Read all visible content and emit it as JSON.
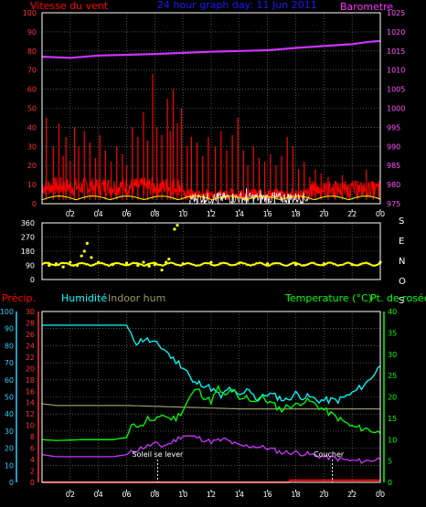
{
  "colors": {
    "background": "#000000",
    "frame": "#ffffff",
    "grid": "#808080",
    "wind_speed": "#ff0000",
    "wind_title": "#ff0000",
    "header_title": "#1a1aff",
    "barometer": "#cc33ff",
    "barometer_title": "#ff33ff",
    "gust": "#ffffff",
    "avg_wind": "#ffff00",
    "wind_dir": "#ffff00",
    "precip": "#ff0000",
    "humidity": "#00ffff",
    "indoor_hum": "#999966",
    "temperature": "#00ff00",
    "dewpoint": "#cc33ff",
    "label_cyan": "#33ccff"
  },
  "header": {
    "title": "24 hour graph day: 11 Jun 2011",
    "wind_label": "Vitesse du vent",
    "baro_label": "Barometre"
  },
  "compass": [
    "S",
    "E",
    "N",
    "O",
    "S"
  ],
  "legend2": {
    "precip": "Précip.",
    "humidity": "Humidité",
    "indoor": "Indoor hum",
    "temp": "Temperature (°C)",
    "dew": "Pt. de rosée"
  },
  "annotations": {
    "sunrise": "Soleil se lever",
    "sunset": "Coucher"
  },
  "chart_data": [
    {
      "type": "bar",
      "name": "wind",
      "x_ticks": [
        "02",
        "04",
        "06",
        "08",
        "10",
        "12",
        "14",
        "16",
        "18",
        "20",
        "22",
        "00"
      ],
      "ylim": [
        0,
        100
      ],
      "y_ticks": [
        0,
        10,
        20,
        30,
        40,
        50,
        60,
        70,
        80,
        90,
        100
      ],
      "y2lim": [
        975,
        1025
      ],
      "y2_ticks": [
        975,
        980,
        985,
        990,
        995,
        1000,
        1005,
        1010,
        1015,
        1020,
        1025
      ],
      "wind_peaks": [
        [
          0.3,
          45
        ],
        [
          0.8,
          30
        ],
        [
          1.2,
          42
        ],
        [
          1.5,
          25
        ],
        [
          1.7,
          35
        ],
        [
          2.0,
          22
        ],
        [
          2.3,
          40
        ],
        [
          2.6,
          30
        ],
        [
          3.0,
          38
        ],
        [
          3.4,
          32
        ],
        [
          3.8,
          24
        ],
        [
          4.1,
          36
        ],
        [
          4.5,
          28
        ],
        [
          4.9,
          22
        ],
        [
          5.3,
          30
        ],
        [
          5.7,
          26
        ],
        [
          6.0,
          20
        ],
        [
          6.4,
          40
        ],
        [
          6.8,
          35
        ],
        [
          7.2,
          48
        ],
        [
          7.5,
          33
        ],
        [
          7.85,
          68
        ],
        [
          8.15,
          40
        ],
        [
          8.5,
          36
        ],
        [
          8.9,
          55
        ],
        [
          9.1,
          38
        ],
        [
          9.3,
          60
        ],
        [
          9.6,
          42
        ],
        [
          9.9,
          50
        ],
        [
          10.3,
          30
        ],
        [
          10.6,
          35
        ],
        [
          11.0,
          32
        ],
        [
          11.4,
          25
        ],
        [
          11.8,
          35
        ],
        [
          12.3,
          30
        ],
        [
          12.7,
          38
        ],
        [
          13.1,
          28
        ],
        [
          13.5,
          36
        ],
        [
          13.9,
          45
        ],
        [
          14.3,
          28
        ],
        [
          14.6,
          20
        ],
        [
          15.0,
          30
        ],
        [
          15.4,
          24
        ],
        [
          15.8,
          22
        ],
        [
          16.2,
          26
        ],
        [
          16.6,
          20
        ],
        [
          17.0,
          25
        ],
        [
          17.4,
          35
        ],
        [
          17.8,
          30
        ],
        [
          18.2,
          18
        ],
        [
          18.6,
          22
        ],
        [
          19.0,
          14
        ],
        [
          19.4,
          18
        ],
        [
          19.8,
          16
        ],
        [
          20.3,
          14
        ],
        [
          20.8,
          12
        ],
        [
          21.3,
          15
        ],
        [
          21.8,
          10
        ],
        [
          22.4,
          12
        ],
        [
          23.0,
          18
        ],
        [
          23.5,
          10
        ],
        [
          23.9,
          12
        ]
      ],
      "barometer": [
        [
          0,
          1013.5
        ],
        [
          2,
          1013.2
        ],
        [
          4,
          1013.8
        ],
        [
          6,
          1014.0
        ],
        [
          8,
          1014.2
        ],
        [
          10,
          1014.5
        ],
        [
          12,
          1014.8
        ],
        [
          14,
          1015.0
        ],
        [
          16,
          1015.2
        ],
        [
          18,
          1015.8
        ],
        [
          20,
          1016.3
        ],
        [
          22,
          1016.8
        ],
        [
          23.2,
          1017.4
        ],
        [
          24,
          1017.6
        ]
      ],
      "gust": [
        [
          10.5,
          2
        ],
        [
          11.5,
          4
        ],
        [
          12.5,
          6
        ],
        [
          13.5,
          5
        ],
        [
          14.5,
          8
        ],
        [
          15.5,
          7
        ],
        [
          16.5,
          6
        ],
        [
          17.5,
          5
        ],
        [
          18.5,
          4
        ]
      ]
    },
    {
      "type": "scatter",
      "name": "wind_direction",
      "ylim": [
        0,
        360
      ],
      "y_ticks": [
        0,
        90,
        180,
        270,
        360
      ],
      "points": [
        [
          0.5,
          90
        ],
        [
          1.0,
          100
        ],
        [
          1.5,
          80
        ],
        [
          2.0,
          110
        ],
        [
          2.5,
          90
        ],
        [
          2.8,
          150
        ],
        [
          3.0,
          180
        ],
        [
          3.2,
          230
        ],
        [
          3.5,
          140
        ],
        [
          4.0,
          110
        ],
        [
          5.0,
          95
        ],
        [
          6.0,
          105
        ],
        [
          6.8,
          90
        ],
        [
          7.2,
          110
        ],
        [
          7.6,
          85
        ],
        [
          8.0,
          95
        ],
        [
          8.5,
          60
        ],
        [
          8.8,
          110
        ],
        [
          9.0,
          130
        ],
        [
          9.4,
          320
        ],
        [
          9.6,
          345
        ],
        [
          10.0,
          100
        ],
        [
          12.0,
          110
        ],
        [
          14.0,
          105
        ],
        [
          16.0,
          100
        ],
        [
          18.0,
          95
        ],
        [
          20.0,
          100
        ],
        [
          22.0,
          95
        ],
        [
          24.0,
          110
        ]
      ]
    },
    {
      "type": "line",
      "name": "temperature_humidity",
      "x_ticks": [
        "02",
        "04",
        "06",
        "08",
        "10",
        "12",
        "14",
        "16",
        "18",
        "20",
        "22",
        "00"
      ],
      "ylim": [
        0,
        100
      ],
      "y_ticks": [
        0,
        10,
        20,
        30,
        40,
        50,
        60,
        70,
        80,
        90,
        100
      ],
      "y_ticks_secondary": [
        0,
        2,
        4,
        6,
        8,
        10,
        12,
        14,
        16,
        18,
        20,
        22,
        24,
        26,
        28,
        30
      ],
      "y2lim": [
        0,
        40
      ],
      "y2_ticks": [
        0,
        5,
        10,
        15,
        20,
        25,
        30,
        35,
        40
      ],
      "humidity": [
        [
          0,
          92
        ],
        [
          1,
          92
        ],
        [
          3,
          92
        ],
        [
          5,
          92
        ],
        [
          6,
          92
        ],
        [
          6.3,
          86
        ],
        [
          6.7,
          82
        ],
        [
          7.3,
          84
        ],
        [
          7.8,
          82
        ],
        [
          8.3,
          80
        ],
        [
          8.8,
          77
        ],
        [
          9.3,
          72
        ],
        [
          9.7,
          70
        ],
        [
          10.3,
          65
        ],
        [
          10.7,
          58
        ],
        [
          11.3,
          58
        ],
        [
          12.0,
          55
        ],
        [
          12.7,
          50
        ],
        [
          13.3,
          55
        ],
        [
          14.0,
          50
        ],
        [
          14.7,
          55
        ],
        [
          15.3,
          48
        ],
        [
          16.0,
          52
        ],
        [
          16.7,
          50
        ],
        [
          17.3,
          48
        ],
        [
          18.0,
          52
        ],
        [
          18.5,
          50
        ],
        [
          19.0,
          50
        ],
        [
          19.5,
          48
        ],
        [
          20.0,
          48
        ],
        [
          21.0,
          48
        ],
        [
          22.0,
          52
        ],
        [
          23.0,
          58
        ],
        [
          24.0,
          68
        ]
      ],
      "indoor_hum": [
        [
          0,
          46
        ],
        [
          1,
          45
        ],
        [
          6,
          45
        ],
        [
          10,
          44
        ],
        [
          14,
          43
        ],
        [
          18,
          43
        ],
        [
          20,
          43
        ],
        [
          22,
          43
        ],
        [
          24,
          43
        ]
      ],
      "temperature": [
        [
          0,
          10
        ],
        [
          1,
          9.8
        ],
        [
          3,
          10
        ],
        [
          5,
          10
        ],
        [
          6,
          10.5
        ],
        [
          6.5,
          14
        ],
        [
          7,
          13
        ],
        [
          7.5,
          15
        ],
        [
          8.0,
          14
        ],
        [
          8.5,
          16
        ],
        [
          9,
          15
        ],
        [
          9.5,
          15
        ],
        [
          10,
          17
        ],
        [
          10.5,
          20
        ],
        [
          11,
          22
        ],
        [
          11.5,
          20
        ],
        [
          12,
          19
        ],
        [
          12.5,
          22
        ],
        [
          13,
          20
        ],
        [
          13.5,
          22
        ],
        [
          14,
          19
        ],
        [
          14.5,
          20
        ],
        [
          15,
          19
        ],
        [
          15.5,
          20
        ],
        [
          16,
          19
        ],
        [
          16.5,
          18
        ],
        [
          17,
          17
        ],
        [
          17.5,
          18
        ],
        [
          18,
          18
        ],
        [
          18.5,
          19
        ],
        [
          19,
          19
        ],
        [
          19.5,
          18
        ],
        [
          20,
          17
        ],
        [
          21,
          15
        ],
        [
          22,
          13
        ],
        [
          23,
          12.5
        ],
        [
          24,
          11.5
        ]
      ],
      "dewpoint": [
        [
          0,
          6.5
        ],
        [
          1,
          6
        ],
        [
          3,
          6
        ],
        [
          5,
          6
        ],
        [
          6,
          6.5
        ],
        [
          7,
          8
        ],
        [
          8,
          9
        ],
        [
          8.5,
          8.5
        ],
        [
          9,
          9
        ],
        [
          10,
          11
        ],
        [
          11,
          10.5
        ],
        [
          12,
          9.5
        ],
        [
          13,
          10
        ],
        [
          14,
          8.5
        ],
        [
          15,
          8.5
        ],
        [
          16,
          8
        ],
        [
          17,
          7
        ],
        [
          18,
          7
        ],
        [
          19,
          6.5
        ],
        [
          20,
          6
        ],
        [
          21,
          5.5
        ],
        [
          22,
          5
        ],
        [
          23,
          5
        ],
        [
          24,
          5.5
        ]
      ],
      "precip": [
        [
          0,
          0
        ],
        [
          17.5,
          0
        ],
        [
          17.6,
          0.5
        ],
        [
          24,
          0.5
        ]
      ],
      "sunrise_hour": 8.2,
      "sunset_hour": 20.6
    }
  ]
}
